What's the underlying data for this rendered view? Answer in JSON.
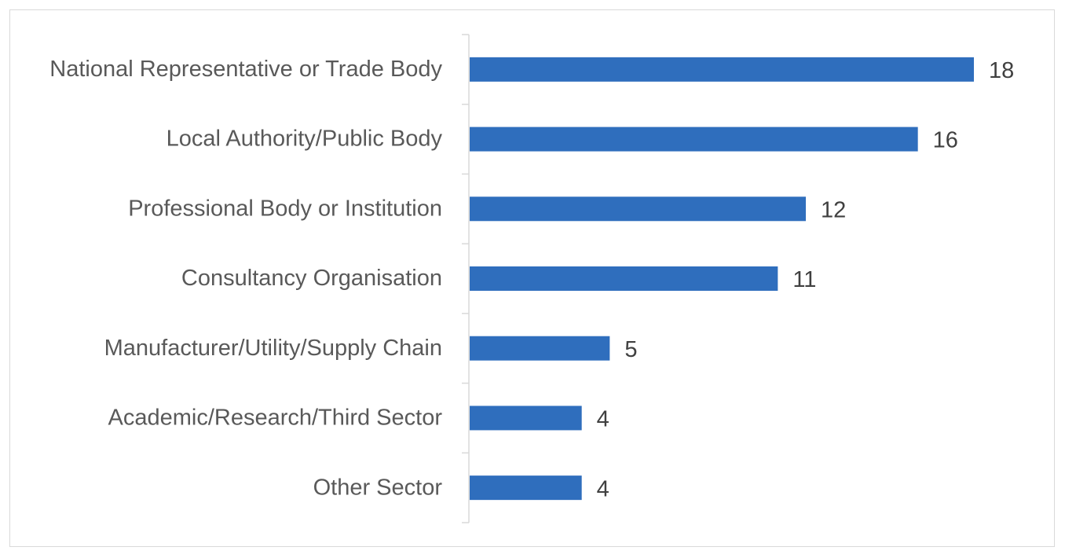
{
  "chart_data": {
    "type": "bar",
    "orientation": "horizontal",
    "categories": [
      "National Representative or Trade Body",
      "Local Authority/Public Body",
      "Professional Body or Institution",
      "Consultancy Organisation",
      "Manufacturer/Utility/Supply Chain",
      "Academic/Research/Third Sector",
      "Other Sector"
    ],
    "values": [
      18,
      16,
      12,
      11,
      5,
      4,
      4
    ],
    "data_labels": [
      "18",
      "16",
      "12",
      "11",
      "5",
      "4",
      "4"
    ],
    "xlim": [
      0,
      18
    ],
    "grid": false,
    "legend": "none",
    "bar_color": "#2f6ebd",
    "axis_color": "#d9d9d9"
  }
}
